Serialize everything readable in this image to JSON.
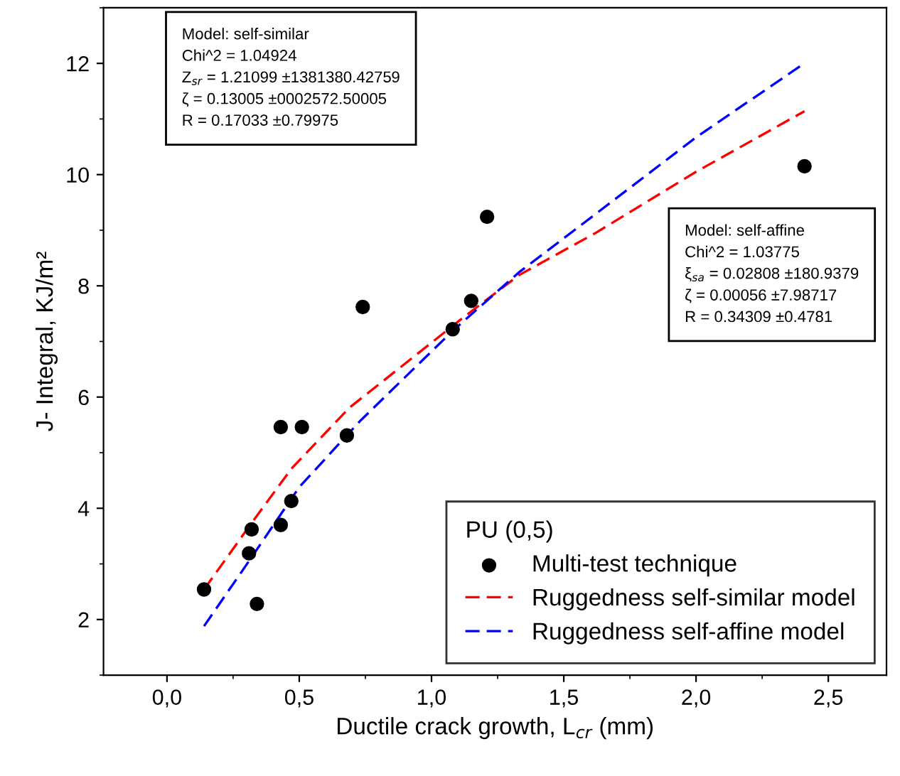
{
  "chart_data": {
    "type": "scatter",
    "xlabel": "Ductile crack growth, L$_{cr}$ (mm)",
    "ylabel": "J- Integral, KJ/m²",
    "legend_title": "PU (0,5)",
    "legend": "bottom right",
    "xlim": [
      -0.24,
      2.72
    ],
    "ylim": [
      1,
      13
    ],
    "xticks": [
      {
        "value": 0,
        "label": "0,0"
      },
      {
        "value": 0.5,
        "label": "0,5"
      },
      {
        "value": 1,
        "label": "1,0"
      },
      {
        "value": 1.5,
        "label": "1,5"
      },
      {
        "value": 2,
        "label": "2,0"
      },
      {
        "value": 2.5,
        "label": "2,5"
      }
    ],
    "yticks": [
      2,
      4,
      6,
      8,
      10,
      12
    ],
    "series": [
      {
        "name": "Multi-test technique",
        "color": "#000000",
        "marker": "circle",
        "x": [
          0.14,
          0.31,
          0.32,
          0.34,
          0.43,
          0.43,
          0.47,
          0.51,
          0.68,
          0.74,
          1.08,
          1.15,
          1.21,
          2.41
        ],
        "values": [
          2.54,
          3.19,
          3.62,
          2.28,
          3.7,
          5.46,
          4.13,
          5.46,
          5.31,
          7.62,
          7.22,
          7.73,
          9.24,
          10.15
        ]
      },
      {
        "name": "Ruggedness self-similar model",
        "type": "line",
        "color": "#ff0000",
        "line_style": "dashed",
        "x": [
          0.14,
          0.31,
          0.47,
          0.69,
          1.12,
          1.33,
          1.62,
          2.0,
          2.41
        ],
        "values": [
          2.54,
          3.67,
          4.71,
          5.81,
          7.43,
          8.19,
          8.95,
          10.05,
          11.14
        ]
      },
      {
        "name": "Ruggedness self-affine model",
        "type": "line",
        "color": "#0000ff",
        "line_style": "dashed",
        "x": [
          0.14,
          0.31,
          0.5,
          0.73,
          1.08,
          1.33,
          1.62,
          2.0,
          2.4
        ],
        "values": [
          1.88,
          3.05,
          4.38,
          5.57,
          7.19,
          8.24,
          9.29,
          10.67,
          11.97
        ]
      }
    ],
    "annotations": [
      "Model: self-similar\nChi^2 = 1.04924\nZ$_{sr}$ = 1.21099 ±1381380.42759\nζ = 0.13005 ±0002572.50005\nR = 0.17033 ±0.79975",
      "Model: self-affine\nChi^2 = 1.03775\nξ$_{sa}$ = 0.02808 ±180.9379\nζ = 0.00056 ±7.98717\nR = 0.34309 ±0.4781"
    ]
  }
}
